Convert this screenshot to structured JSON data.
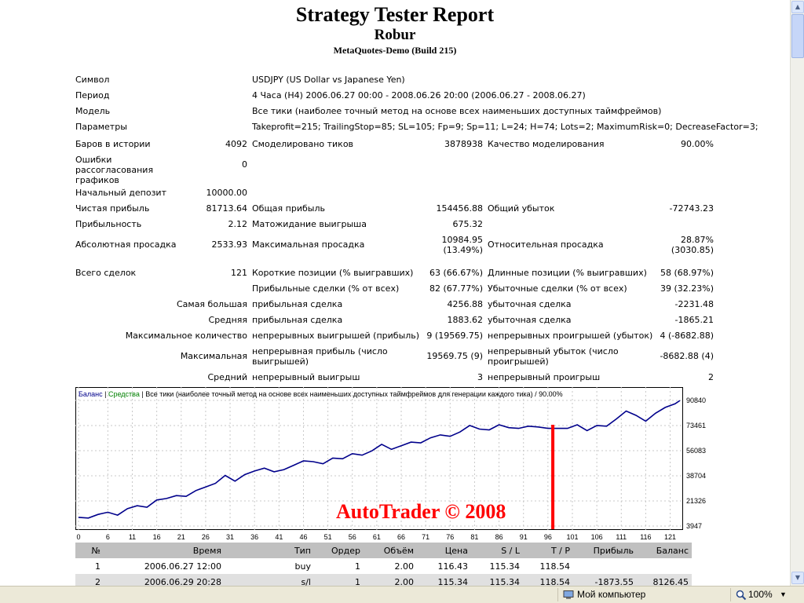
{
  "report": {
    "title": "Strategy Tester Report",
    "expert": "Robur",
    "server": "MetaQuotes-Demo (Build 215)"
  },
  "info": {
    "symbol_label": "Символ",
    "symbol_value": "USDJPY (US Dollar vs Japanese Yen)",
    "period_label": "Период",
    "period_value": "4 Часа (H4) 2006.06.27 00:00 - 2008.06.26 20:00 (2006.06.27 - 2008.06.27)",
    "model_label": "Модель",
    "model_value": "Все тики (наиболее точный метод на основе всех наименьших доступных таймфреймов)",
    "params_label": "Параметры",
    "params_value": "Takeprofit=215; TrailingStop=85; SL=105; Fp=9; Sp=11; L=24; H=74; Lots=2; MaximumRisk=0; DecreaseFactor=3;"
  },
  "stats": {
    "bars_label": "Баров в истории",
    "bars_value": "4092",
    "ticks_label": "Смоделировано тиков",
    "ticks_value": "3878938",
    "quality_label": "Качество моделирования",
    "quality_value": "90.00%",
    "errors_label": "Ошибки рассогласования графиков",
    "errors_value": "0",
    "deposit_label": "Начальный депозит",
    "deposit_value": "10000.00",
    "net_label": "Чистая прибыль",
    "net_value": "81713.64",
    "gross_profit_label": "Общая прибыль",
    "gross_profit_value": "154456.88",
    "gross_loss_label": "Общий убыток",
    "gross_loss_value": "-72743.23",
    "pf_label": "Прибыльность",
    "pf_value": "2.12",
    "expected_label": "Матожидание выигрыша",
    "expected_value": "675.32",
    "abs_dd_label": "Абсолютная просадка",
    "abs_dd_value": "2533.93",
    "max_dd_label": "Максимальная просадка",
    "max_dd_value1": "10984.95",
    "max_dd_value2": "(13.49%)",
    "rel_dd_label": "Относительная просадка",
    "rel_dd_value1": "28.87%",
    "rel_dd_value2": "(3030.85)",
    "total_label": "Всего сделок",
    "total_value": "121",
    "short_label": "Короткие позиции (% выигравших)",
    "short_value": "63 (66.67%)",
    "long_label": "Длинные позиции (% выигравших)",
    "long_value": "58 (68.97%)",
    "won_label": "Прибыльные сделки (% от всех)",
    "won_value": "82 (67.77%)",
    "lost_label": "Убыточные сделки (% от всех)",
    "lost_value": "39 (32.23%)",
    "largest_label": "Самая большая",
    "largest_profit_label": "прибыльная сделка",
    "largest_profit_value": "4256.88",
    "largest_loss_label": "убыточная сделка",
    "largest_loss_value": "-2231.48",
    "average_label": "Средняя",
    "average_profit_label": "прибыльная сделка",
    "average_profit_value": "1883.62",
    "average_loss_label": "убыточная сделка",
    "average_loss_value": "-1865.21",
    "max_count_label": "Максимальное количество",
    "max_cons_wins_label": "непрерывных выигрышей (прибыль)",
    "max_cons_wins_value": "9 (19569.75)",
    "max_cons_losses_label": "непрерывных проигрышей (убыток)",
    "max_cons_losses_value": "4 (-8682.88)",
    "maximal_label": "Максимальная",
    "maximal_profit_label": "непрерывная прибыль (число выигрышей)",
    "maximal_profit_value": "19569.75 (9)",
    "maximal_loss_label": "непрерывный убыток (число проигрышей)",
    "maximal_loss_value": "-8682.88 (4)",
    "avg_cons_label": "Средний",
    "avg_cons_wins_label": "непрерывный выигрыш",
    "avg_cons_wins_value": "3",
    "avg_cons_losses_label": "непрерывный проигрыш",
    "avg_cons_losses_value": "2"
  },
  "chart_data": {
    "type": "line",
    "title_balance": "Баланс",
    "title_equity": "Средства",
    "title_rest": "Все тики (наиболее точный метод на основе всех наименьших доступных таймфреймов для генерации каждого тика) / 90.00%",
    "watermark": "AutoTrader © 2008",
    "ylim": [
      3947,
      90840
    ],
    "xlim": [
      0,
      123
    ],
    "y_ticks": [
      "90840",
      "73461",
      "56083",
      "38704",
      "21326",
      "3947"
    ],
    "x_ticks": [
      "0",
      "6",
      "11",
      "16",
      "21",
      "26",
      "31",
      "36",
      "41",
      "46",
      "51",
      "56",
      "61",
      "66",
      "71",
      "76",
      "81",
      "86",
      "91",
      "96",
      "101",
      "106",
      "111",
      "116",
      "121"
    ],
    "marker_trade": 97,
    "series": [
      {
        "x": [
          0,
          2,
          4,
          6,
          8,
          10,
          12,
          14,
          16,
          18,
          20,
          22,
          24,
          26,
          28,
          30,
          32,
          34,
          36,
          38,
          40,
          42,
          44,
          46,
          48,
          50,
          52,
          54,
          56,
          58,
          60,
          62,
          64,
          66,
          68,
          70,
          72,
          74,
          76,
          78,
          80,
          82,
          84,
          86,
          88,
          90,
          92,
          94,
          96,
          98,
          100,
          102,
          104,
          106,
          108,
          110,
          112,
          114,
          116,
          118,
          120,
          122,
          123
        ],
        "y": [
          10000,
          9500,
          12000,
          13500,
          11500,
          16000,
          18000,
          17000,
          22000,
          23000,
          25000,
          24500,
          28500,
          31000,
          33500,
          39000,
          35000,
          39500,
          42000,
          44000,
          41500,
          43000,
          46000,
          49000,
          48500,
          47000,
          51000,
          50500,
          54000,
          53000,
          56000,
          60500,
          57000,
          59500,
          62000,
          61500,
          65000,
          67000,
          66000,
          69000,
          73500,
          71000,
          70500,
          74000,
          72000,
          71500,
          73000,
          72500,
          71500,
          71500,
          71500,
          74000,
          70000,
          73500,
          73000,
          78000,
          83500,
          80500,
          76500,
          82000,
          86000,
          88500,
          90800
        ]
      }
    ]
  },
  "trades": {
    "headers": [
      "№",
      "Время",
      "Тип",
      "Ордер",
      "Объём",
      "Цена",
      "S / L",
      "T / P",
      "Прибыль",
      "Баланс"
    ],
    "rows": [
      [
        "1",
        "2006.06.27 12:00",
        "buy",
        "1",
        "2.00",
        "116.43",
        "115.34",
        "118.54",
        "",
        ""
      ],
      [
        "2",
        "2006.06.29 20:28",
        "s/l",
        "1",
        "2.00",
        "115.34",
        "115.34",
        "118.54",
        "-1873.55",
        "8126.45"
      ]
    ]
  },
  "statusbar": {
    "zone": "Мой компьютер",
    "zoom": "100%"
  },
  "colors": {
    "balance_line": "#00008b",
    "equity_label": "#008000",
    "marker": "#ff0000",
    "header_gray": "#c0c0c0"
  }
}
